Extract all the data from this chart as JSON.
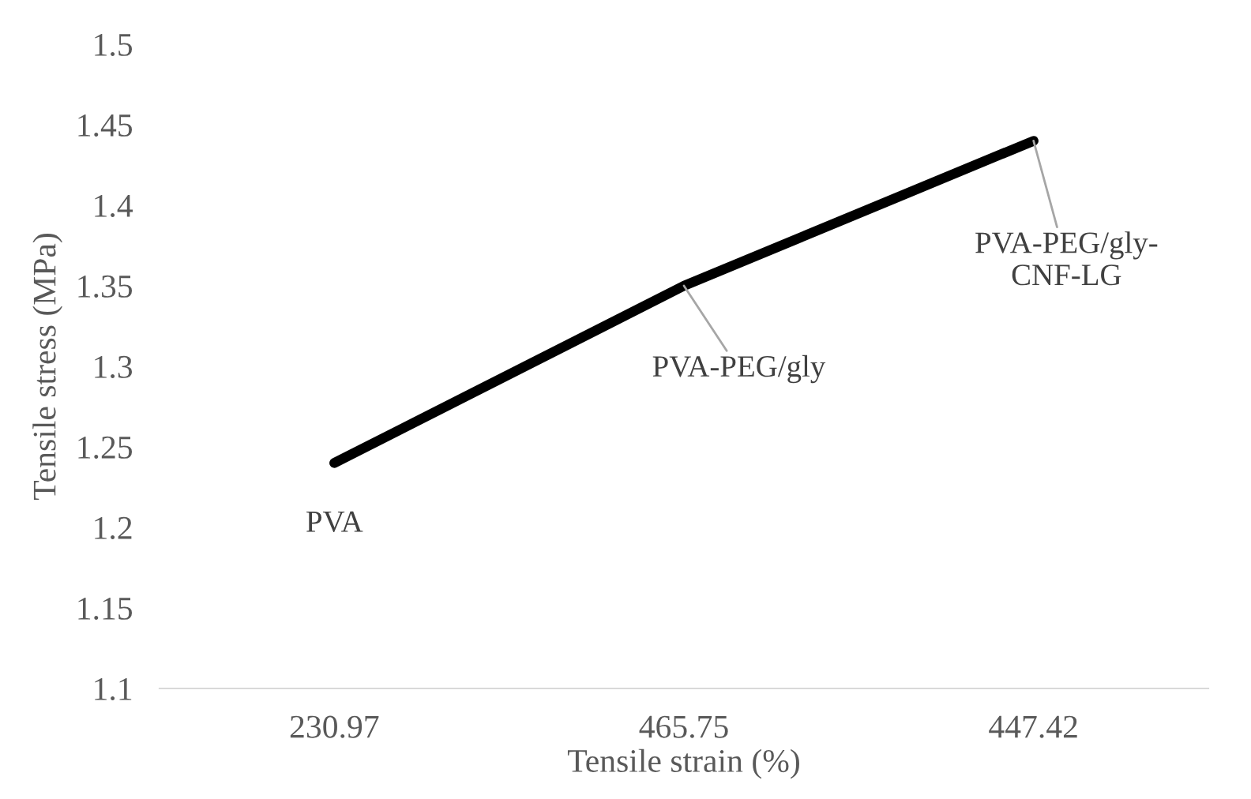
{
  "chart_data": {
    "type": "line",
    "xlabel": "Tensile strain (%)",
    "ylabel": "Tensile stress (MPa)",
    "categories": [
      "230.97",
      "465.75",
      "447.42"
    ],
    "series": [
      {
        "color": "#000000",
        "values": [
          1.24,
          1.35,
          1.44
        ]
      }
    ],
    "ylim": [
      1.1,
      1.5
    ],
    "yticks": [
      1.1,
      1.15,
      1.2,
      1.25,
      1.3,
      1.35,
      1.4,
      1.45,
      1.5
    ],
    "grid": false,
    "legend": false,
    "marker": "none",
    "line_style": "solid",
    "annotations": [
      {
        "text": "PVA",
        "x": "230.97",
        "y": 1.24
      },
      {
        "text": "PVA-PEG/gly",
        "x": "465.75",
        "y": 1.35
      },
      {
        "text": "PVA-PEG/gly-\nCNF-LG",
        "x": "447.42",
        "y": 1.44
      }
    ]
  }
}
